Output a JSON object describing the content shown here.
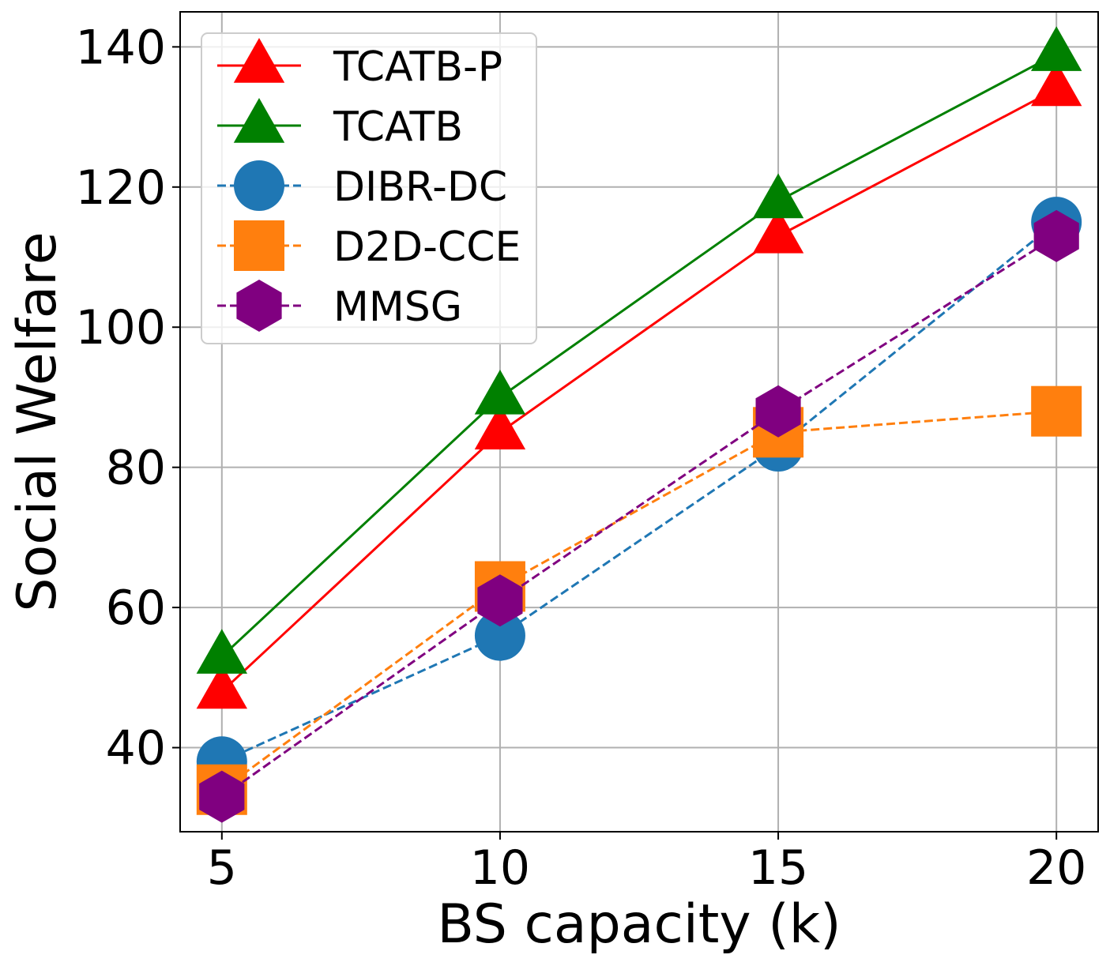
{
  "chart_data": {
    "type": "line",
    "xlabel": "BS capacity (k)",
    "ylabel": "Social Welfare",
    "x": [
      5,
      10,
      15,
      20
    ],
    "xticks": [
      5,
      10,
      15,
      20
    ],
    "yticks": [
      40,
      60,
      80,
      100,
      120,
      140
    ],
    "xlim": [
      4.25,
      20.75
    ],
    "ylim": [
      28,
      145
    ],
    "grid": true,
    "legend_position": "top-left",
    "series": [
      {
        "name": "TCATB-P",
        "values": [
          48,
          85,
          113,
          134
        ],
        "color": "#ff0000",
        "line": "solid",
        "marker": "triangle"
      },
      {
        "name": "TCATB",
        "values": [
          53,
          90,
          118,
          139
        ],
        "color": "#008000",
        "line": "solid",
        "marker": "triangle"
      },
      {
        "name": "DIBR-DC",
        "values": [
          38,
          56,
          83,
          115
        ],
        "color": "#1f77b4",
        "line": "dashed",
        "marker": "circle"
      },
      {
        "name": "D2D-CCE",
        "values": [
          34,
          63,
          85,
          88
        ],
        "color": "#ff7f0e",
        "line": "dashed",
        "marker": "square"
      },
      {
        "name": "MMSG",
        "values": [
          33,
          61,
          88,
          113
        ],
        "color": "#800080",
        "line": "dashed",
        "marker": "hexagon"
      }
    ]
  }
}
